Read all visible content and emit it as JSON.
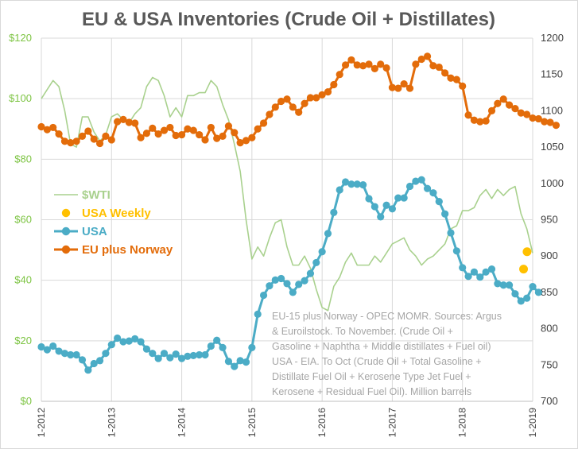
{
  "chart_data": {
    "type": "line",
    "title": "EU & USA Inventories (Crude Oil + Distillates)",
    "left_axis": {
      "ticks": [
        "$0",
        "$20",
        "$40",
        "$60",
        "$80",
        "$100",
        "$120"
      ],
      "values": [
        0,
        20,
        40,
        60,
        80,
        100,
        120
      ],
      "range": [
        0,
        120
      ]
    },
    "right_axis": {
      "ticks": [
        "700",
        "750",
        "800",
        "850",
        "900",
        "950",
        "1000",
        "1050",
        "1100",
        "1150",
        "1200"
      ],
      "values": [
        700,
        750,
        800,
        850,
        900,
        950,
        1000,
        1050,
        1100,
        1150,
        1200
      ],
      "range": [
        700,
        1200
      ]
    },
    "x_axis": {
      "ticks": [
        "1-2012",
        "1-2013",
        "1-2014",
        "1-2015",
        "1-2016",
        "1-2017",
        "1-2018",
        "1-2019"
      ],
      "years": [
        2012,
        2013,
        2014,
        2015,
        2016,
        2017,
        2018,
        2019
      ]
    },
    "colors": {
      "wti": "#a9d18e",
      "weekly": "#ffc000",
      "usa": "#4bacc6",
      "eu": "#e36c0a",
      "left_axis": "#7dc443",
      "grid": "#d9d9d9"
    },
    "series": [
      {
        "name": "$WTI",
        "axis": "left",
        "start": 2012.0,
        "step": 0.0833333,
        "values": [
          100,
          103,
          106,
          104,
          96,
          85,
          84,
          94,
          94,
          89,
          86,
          88,
          94,
          95,
          93,
          92,
          95,
          97,
          104,
          107,
          106,
          101,
          94,
          97,
          94,
          101,
          101,
          102,
          102,
          106,
          104,
          98,
          93,
          85,
          76,
          60,
          47,
          51,
          48,
          54,
          59,
          60,
          51,
          45,
          45,
          48,
          44,
          37,
          31,
          30,
          38,
          41,
          46,
          49,
          45,
          45,
          45,
          48,
          46,
          49,
          52,
          53,
          54,
          50,
          48,
          45,
          47,
          48,
          50,
          52,
          57,
          58,
          63,
          63,
          64,
          68,
          70,
          67,
          70,
          68,
          70,
          71,
          62,
          57,
          49
        ]
      },
      {
        "name": "USA Weekly",
        "axis": "right",
        "x": [
          2018.87,
          2018.92
        ],
        "values": [
          882,
          906
        ]
      },
      {
        "name": "USA",
        "axis": "right",
        "start": 2012.0,
        "step": 0.0833333,
        "values": [
          775,
          771,
          776,
          769,
          766,
          764,
          764,
          757,
          743,
          752,
          756,
          766,
          778,
          787,
          782,
          783,
          786,
          782,
          772,
          766,
          759,
          766,
          760,
          765,
          759,
          762,
          763,
          764,
          764,
          776,
          784,
          774,
          755,
          748,
          756,
          754,
          774,
          820,
          846,
          859,
          867,
          869,
          862,
          850,
          861,
          866,
          876,
          891,
          906,
          931,
          960,
          991,
          1002,
          999,
          999,
          998,
          979,
          968,
          954,
          970,
          965,
          980,
          980,
          996,
          1003,
          1005,
          993,
          987,
          975,
          958,
          932,
          907,
          884,
          872,
          878,
          871,
          878,
          882,
          862,
          860,
          860,
          848,
          838,
          842,
          858,
          850
        ]
      },
      {
        "name": "EU plus Norway",
        "axis": "right",
        "start": 2012.0,
        "step": 0.0833333,
        "values": [
          1078,
          1074,
          1077,
          1068,
          1058,
          1056,
          1058,
          1065,
          1072,
          1061,
          1055,
          1065,
          1060,
          1085,
          1088,
          1084,
          1083,
          1063,
          1069,
          1076,
          1068,
          1073,
          1077,
          1066,
          1067,
          1075,
          1073,
          1067,
          1060,
          1077,
          1062,
          1065,
          1079,
          1070,
          1056,
          1059,
          1063,
          1075,
          1083,
          1095,
          1105,
          1113,
          1116,
          1105,
          1098,
          1110,
          1118,
          1118,
          1122,
          1126,
          1136,
          1150,
          1163,
          1170,
          1163,
          1162,
          1164,
          1158,
          1164,
          1159,
          1132,
          1131,
          1137,
          1131,
          1164,
          1171,
          1175,
          1162,
          1160,
          1152,
          1145,
          1143,
          1134,
          1094,
          1087,
          1085,
          1086,
          1100,
          1110,
          1116,
          1108,
          1103,
          1097,
          1095,
          1090,
          1089,
          1085,
          1084,
          1080
        ]
      }
    ],
    "legend": [
      {
        "label": "$WTI",
        "marker": "line"
      },
      {
        "label": "USA Weekly",
        "marker": "dot"
      },
      {
        "label": "USA",
        "marker": "line-dot"
      },
      {
        "label": "EU plus Norway",
        "marker": "line-dot"
      }
    ],
    "annotation": [
      "EU-15 plus Norway - OPEC MOMR. Sources: Argus",
      "& Euroilstock. To November. (Crude Oil +",
      "Gasoline + Naphtha + Middle distillates + Fuel oil)",
      "USA - EIA. To Oct (Crude Oil + Total Gasoline +",
      "Distillate Fuel Oil + Kerosene Type Jet Fuel +",
      "Kerosene + Residual Fuel Oil). Million barrels"
    ]
  }
}
